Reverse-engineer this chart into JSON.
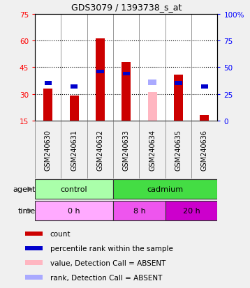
{
  "title": "GDS3079 / 1393738_s_at",
  "samples": [
    "GSM240630",
    "GSM240631",
    "GSM240632",
    "GSM240633",
    "GSM240634",
    "GSM240635",
    "GSM240636"
  ],
  "count_values": [
    33,
    29,
    61,
    48,
    null,
    41,
    18
  ],
  "percentile_values": [
    35,
    32,
    46,
    44,
    null,
    35,
    32
  ],
  "absent_value": [
    null,
    null,
    null,
    null,
    31,
    null,
    null
  ],
  "absent_rank": [
    null,
    null,
    null,
    null,
    36,
    null,
    null
  ],
  "left_yticks": [
    15,
    30,
    45,
    60,
    75
  ],
  "right_yticks": [
    0,
    25,
    50,
    75,
    100
  ],
  "ylim_left": [
    15,
    75
  ],
  "ylim_right": [
    0,
    100
  ],
  "agent_labels": [
    {
      "label": "control",
      "start": 0,
      "end": 3,
      "color": "#AAFFAA"
    },
    {
      "label": "cadmium",
      "start": 3,
      "end": 7,
      "color": "#44DD44"
    }
  ],
  "time_labels": [
    {
      "label": "0 h",
      "start": 0,
      "end": 3,
      "color": "#FFAAFF"
    },
    {
      "label": "8 h",
      "start": 3,
      "end": 5,
      "color": "#EE55EE"
    },
    {
      "label": "20 h",
      "start": 5,
      "end": 7,
      "color": "#CC00CC"
    }
  ],
  "bar_color": "#CC0000",
  "percentile_color": "#0000CC",
  "absent_bar_color": "#FFB6C1",
  "absent_rank_color": "#AAAAFF",
  "sample_label_bg": "#C8C8C8",
  "legend_bg": "#F0F0F0",
  "plot_bg": "#FFFFFF",
  "fig_bg": "#F0F0F0",
  "border_color": "#888888",
  "legend_items": [
    {
      "label": "count",
      "color": "#CC0000"
    },
    {
      "label": "percentile rank within the sample",
      "color": "#0000CC"
    },
    {
      "label": "value, Detection Call = ABSENT",
      "color": "#FFB6C1"
    },
    {
      "label": "rank, Detection Call = ABSENT",
      "color": "#AAAAFF"
    }
  ]
}
